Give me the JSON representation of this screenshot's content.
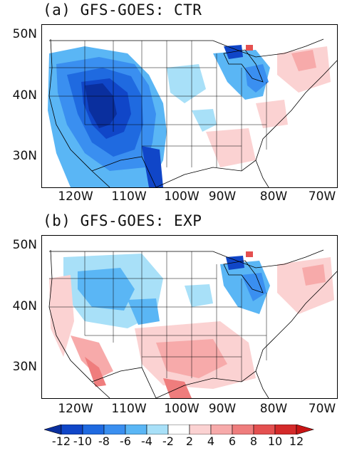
{
  "panels": [
    {
      "title": "(a) GFS-GOES: CTR",
      "lat_labels": [
        "50N",
        "40N",
        "30N"
      ],
      "lon_labels": [
        "120W",
        "110W",
        "100W",
        "90W",
        "80W",
        "70W"
      ]
    },
    {
      "title": "(b) GFS-GOES: EXP",
      "lat_labels": [
        "50N",
        "40N",
        "30N"
      ],
      "lon_labels": [
        "120W",
        "110W",
        "100W",
        "90W",
        "80W",
        "70W"
      ]
    }
  ],
  "colorbar": {
    "labels": [
      "-12",
      "-10",
      "-8",
      "-6",
      "-4",
      "-2",
      "2",
      "4",
      "6",
      "8",
      "10",
      "12"
    ],
    "colors": [
      "#0a2f9e",
      "#1046c8",
      "#1f6ae0",
      "#3a8ff0",
      "#5ab6f5",
      "#a8e0f8",
      "#ffffff",
      "#fbd2d2",
      "#f7aaaa",
      "#ef7d7d",
      "#e45050",
      "#d42a2a",
      "#c81414"
    ]
  }
}
